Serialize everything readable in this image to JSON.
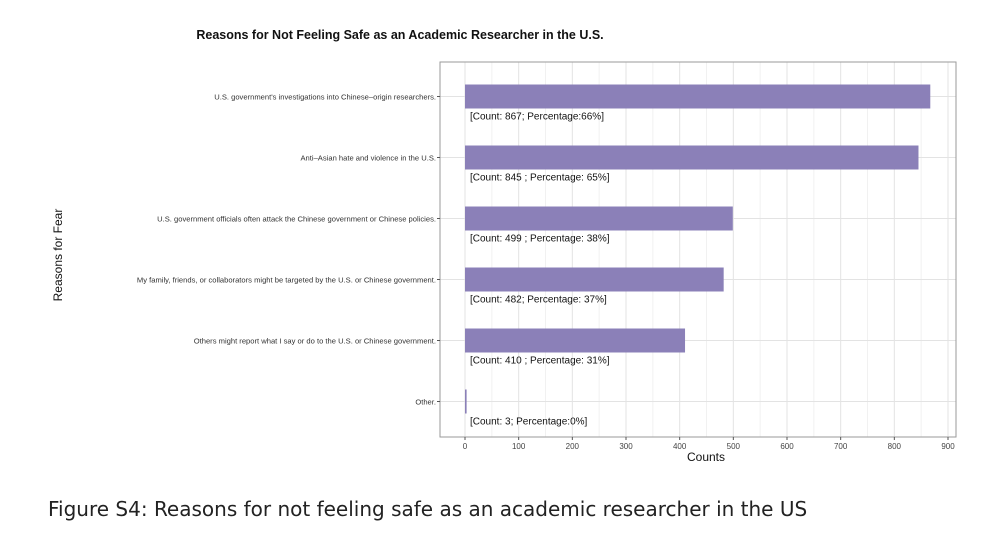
{
  "chart_data": {
    "type": "bar",
    "orientation": "horizontal",
    "title": "Reasons for Not Feeling Safe as an Academic Researcher in the U.S.",
    "xlabel": "Counts",
    "ylabel": "Reasons for Fear",
    "xlim": [
      0,
      900
    ],
    "xticks": [
      0,
      100,
      200,
      300,
      400,
      500,
      600,
      700,
      800,
      900
    ],
    "grid": true,
    "bar_color": "#8b80b8",
    "categories": [
      "U.S. government's investigations into Chinese–origin researchers.",
      "Anti–Asian hate and violence in the U.S.",
      "U.S. government officials often attack the Chinese government or Chinese policies.",
      "My family, friends, or collaborators might be targeted by the U.S. or Chinese government.",
      "Others might report what I say or do to the U.S. or Chinese government.",
      "Other."
    ],
    "values": [
      867,
      845,
      499,
      482,
      410,
      3
    ],
    "annotations": [
      "[Count: 867; Percentage:66%]",
      "[Count: 845 ; Percentage: 65%]",
      "[Count: 499 ; Percentage: 38%]",
      "[Count: 482; Percentage: 37%]",
      "[Count: 410 ; Percentage: 31%]",
      "[Count: 3; Percentage:0%]"
    ]
  },
  "caption": "Figure S4: Reasons for not feeling safe as an academic researcher in the US"
}
